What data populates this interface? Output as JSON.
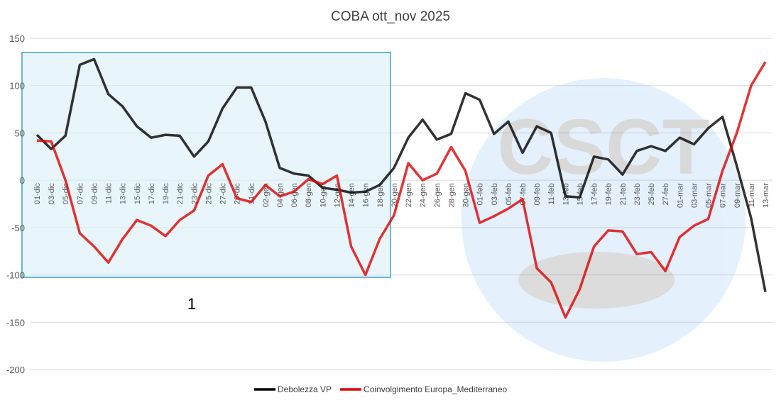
{
  "chart_data": {
    "type": "line",
    "title": "COBA ott_nov 2025",
    "categories": [
      "01-dic",
      "03-dic",
      "05-dic",
      "07-dic",
      "09-dic",
      "11-dic",
      "13-dic",
      "15-dic",
      "17-dic",
      "19-dic",
      "21-dic",
      "23-dic",
      "25-dic",
      "27-dic",
      "29-dic",
      "31-dic",
      "02-gen",
      "04-gen",
      "06-gen",
      "08-gen",
      "10-gen",
      "12-gen",
      "14-gen",
      "16-gen",
      "18-gen",
      "20-gen",
      "22-gen",
      "24-gen",
      "26-gen",
      "28-gen",
      "30-gen",
      "01-feb",
      "03-feb",
      "05-feb",
      "07-feb",
      "09-feb",
      "11-feb",
      "13-feb",
      "15-feb",
      "17-feb",
      "19-feb",
      "21-feb",
      "23-feb",
      "25-feb",
      "27-feb",
      "01-mar",
      "03-mar",
      "05-mar",
      "07-mar",
      "09-mar",
      "11-mar",
      "13-mar"
    ],
    "series": [
      {
        "name": "Debolezza VP",
        "color": "#000000",
        "values": [
          48,
          33,
          47,
          122,
          128,
          91,
          78,
          57,
          45,
          48,
          47,
          25,
          41,
          76,
          98,
          98,
          62,
          13,
          7,
          5,
          -8,
          -10,
          -13,
          -12,
          -5,
          13,
          45,
          64,
          43,
          49,
          92,
          85,
          49,
          62,
          29,
          57,
          50,
          -17,
          -18,
          25,
          22,
          6,
          31,
          36,
          31,
          45,
          38,
          55,
          67,
          15,
          -40,
          -118
        ]
      },
      {
        "name": "Coinvolgimento Europa_Mediterraneo",
        "color": "#e00000",
        "values": [
          42,
          41,
          0,
          -56,
          -70,
          -87,
          -62,
          -42,
          -48,
          -59,
          -42,
          -32,
          5,
          17,
          -19,
          -23,
          -5,
          -17,
          -12,
          1,
          -4,
          5,
          -70,
          -100,
          -62,
          -37,
          18,
          0,
          7,
          35,
          10,
          -45,
          -38,
          -30,
          -20,
          -93,
          -108,
          -145,
          -115,
          -70,
          -53,
          -54,
          -78,
          -76,
          -96,
          -60,
          -48,
          -41,
          10,
          50,
          100,
          125
        ]
      }
    ],
    "ylim": [
      -200,
      150
    ],
    "yticks": [
      -200,
      -150,
      -100,
      -50,
      0,
      50,
      100,
      150
    ],
    "grid": true,
    "legend": "bottom",
    "annotation": "1"
  }
}
